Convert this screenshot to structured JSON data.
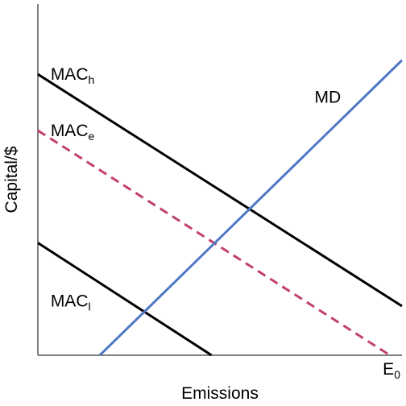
{
  "chart_data": {
    "type": "line",
    "title": "",
    "xlabel": "Emissions",
    "ylabel": "Capital/$",
    "xlim": [
      0,
      100
    ],
    "ylim": [
      0,
      100
    ],
    "grid": false,
    "x_tick_labels": [
      {
        "x": 96.7,
        "base": "E",
        "sub": "0"
      }
    ],
    "series": [
      {
        "name": "MAC_h",
        "label_base": "MAC",
        "label_sub": "h",
        "color": "#000000",
        "dashed": false,
        "points": [
          [
            0,
            80
          ],
          [
            100,
            14
          ]
        ],
        "label_at": [
          3.5,
          80
        ]
      },
      {
        "name": "MAC_e",
        "label_base": "MAC",
        "label_sub": "e",
        "color": "#c2416b",
        "dashed": true,
        "points": [
          [
            0,
            64
          ],
          [
            96.7,
            0
          ]
        ],
        "label_at": [
          3.5,
          64
        ]
      },
      {
        "name": "MAC_l",
        "label_base": "MAC",
        "label_sub": "l",
        "color": "#000000",
        "dashed": false,
        "points": [
          [
            0,
            32
          ],
          [
            47.7,
            0
          ]
        ],
        "label_at": [
          3.5,
          15.5
        ]
      },
      {
        "name": "MD",
        "label_base": "MD",
        "label_sub": "",
        "color": "#4f77c6",
        "dashed": false,
        "points": [
          [
            17,
            0
          ],
          [
            100,
            84
          ]
        ],
        "label_at": [
          76,
          73.5
        ]
      }
    ]
  }
}
